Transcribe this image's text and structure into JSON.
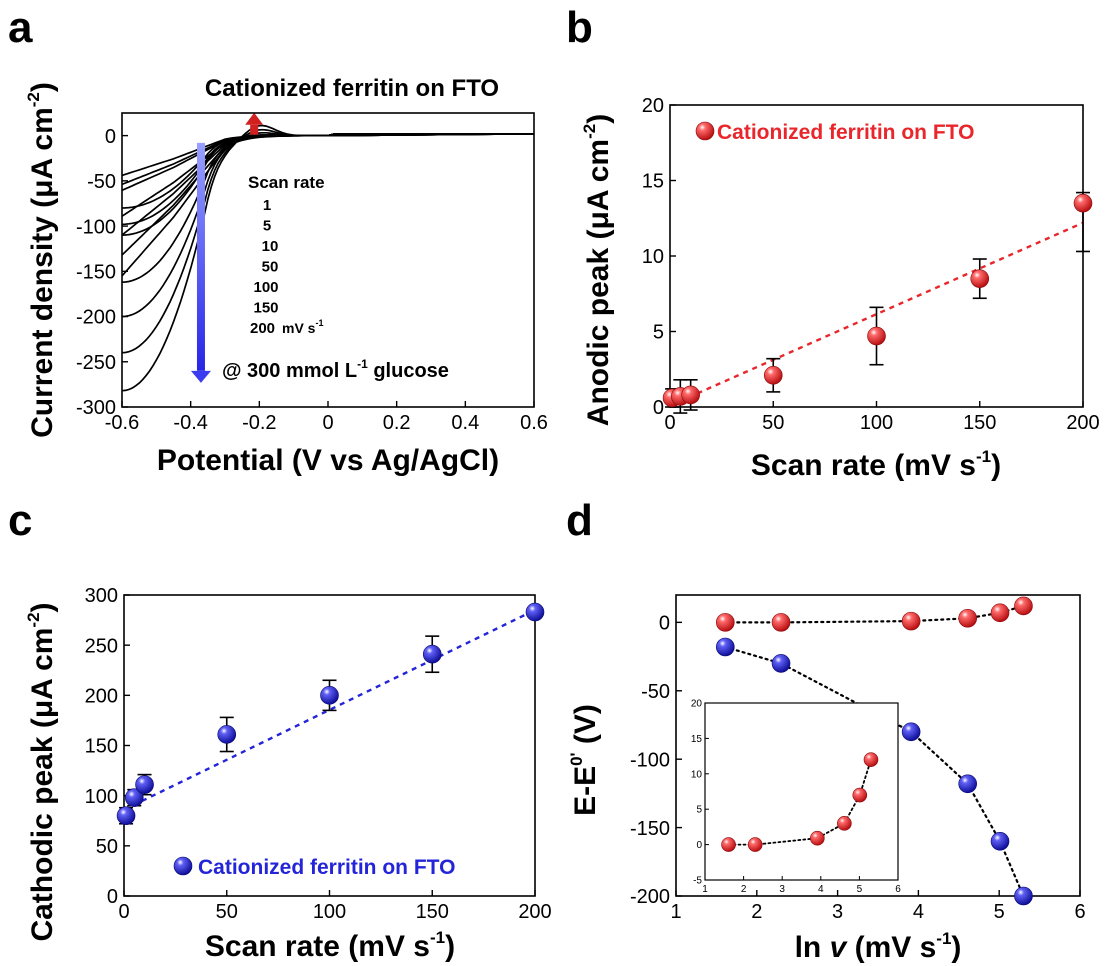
{
  "colors": {
    "red": "#e8262b",
    "blue": "#2424d8",
    "black": "#000000",
    "arrow_blue": "#3b3bf0",
    "arrow_red": "#d0201f"
  },
  "chart_data": [
    {
      "id": "a",
      "panel_label": "a",
      "type": "line",
      "title": "Cationized ferritin on FTO",
      "xlabel": "Potential (V vs Ag/AgCl)",
      "ylabel": "Current density (μA cm",
      "ylabel_sup": "-2",
      "ylabel_end": ")",
      "xlim": [
        -0.6,
        0.6
      ],
      "ylim": [
        -300,
        25
      ],
      "xticks": [
        -0.6,
        -0.4,
        -0.2,
        0,
        0.2,
        0.4,
        0.6
      ],
      "xtick_labels": [
        "-0.6",
        "-0.4",
        "-0.2",
        "0",
        "0.2",
        "0.4",
        "0.6"
      ],
      "yticks": [
        0,
        -50,
        -100,
        -150,
        -200,
        -250,
        -300
      ],
      "ytick_labels": [
        "0",
        "-50",
        "-100",
        "-150",
        "-200",
        "-250",
        "-300"
      ],
      "scan_rate_title": "Scan rate",
      "scan_rates": [
        "1",
        "5",
        "10",
        "50",
        "100",
        "150",
        "200"
      ],
      "scan_rate_unit": "mV s",
      "scan_rate_unit_sup": "-1",
      "annotation_main": "@ 300 mmol L",
      "annotation_sup": "-1",
      "annotation_end": " glucose",
      "series": [
        {
          "scan_rate": 1,
          "cathodic_peak": -80,
          "anodic_peak": 0.7
        },
        {
          "scan_rate": 5,
          "cathodic_peak": -98,
          "anodic_peak": 0.9
        },
        {
          "scan_rate": 10,
          "cathodic_peak": -110,
          "anodic_peak": 1.0
        },
        {
          "scan_rate": 50,
          "cathodic_peak": -162,
          "anodic_peak": 2.1
        },
        {
          "scan_rate": 100,
          "cathodic_peak": -200,
          "anodic_peak": 4.7
        },
        {
          "scan_rate": 150,
          "cathodic_peak": -240,
          "anodic_peak": 8.5
        },
        {
          "scan_rate": 200,
          "cathodic_peak": -282,
          "anodic_peak": 13.5
        }
      ]
    },
    {
      "id": "b",
      "panel_label": "b",
      "type": "scatter",
      "xlabel": "Scan rate (mV s",
      "xlabel_sup": "-1",
      "xlabel_end": ")",
      "ylabel": "Anodic peak (μA cm",
      "ylabel_sup": "-2",
      "ylabel_end": ")",
      "legend": "Cationized ferritin on FTO",
      "xlim": [
        0,
        200
      ],
      "ylim": [
        0,
        20
      ],
      "xticks": [
        0,
        50,
        100,
        150,
        200
      ],
      "xtick_labels": [
        "0",
        "50",
        "100",
        "150",
        "200"
      ],
      "yticks": [
        0,
        5,
        10,
        15,
        20
      ],
      "ytick_labels": [
        "0",
        "5",
        "10",
        "15",
        "20"
      ],
      "points": [
        {
          "x": 1,
          "y": 0.6,
          "err": 0.6
        },
        {
          "x": 5,
          "y": 0.7,
          "err": 1.1
        },
        {
          "x": 10,
          "y": 0.8,
          "err": 1.0
        },
        {
          "x": 50,
          "y": 2.1,
          "err": 1.1
        },
        {
          "x": 100,
          "y": 4.7,
          "err": 1.9
        },
        {
          "x": 150,
          "y": 8.5,
          "err": 1.3
        },
        {
          "x": 200,
          "y": 13.5,
          "err": 0.7
        }
      ],
      "err_low_200": 3.2,
      "fit": {
        "x": [
          0,
          200
        ],
        "y": [
          0.1,
          12.2
        ]
      }
    },
    {
      "id": "c",
      "panel_label": "c",
      "type": "scatter",
      "xlabel": "Scan rate (mV s",
      "xlabel_sup": "-1",
      "xlabel_end": ")",
      "ylabel": "Cathodic peak (μA cm",
      "ylabel_sup": "-2",
      "ylabel_end": ")",
      "legend": "Cationized ferritin on FTO",
      "xlim": [
        0,
        200
      ],
      "ylim": [
        0,
        300
      ],
      "xticks": [
        0,
        50,
        100,
        150,
        200
      ],
      "xtick_labels": [
        "0",
        "50",
        "100",
        "150",
        "200"
      ],
      "yticks": [
        0,
        50,
        100,
        150,
        200,
        250,
        300
      ],
      "ytick_labels": [
        "0",
        "50",
        "100",
        "150",
        "200",
        "250",
        "300"
      ],
      "points": [
        {
          "x": 1,
          "y": 80,
          "err": 8
        },
        {
          "x": 5,
          "y": 98,
          "err": 8
        },
        {
          "x": 10,
          "y": 111,
          "err": 10
        },
        {
          "x": 50,
          "y": 161,
          "err": 17
        },
        {
          "x": 100,
          "y": 200,
          "err": 15
        },
        {
          "x": 150,
          "y": 241,
          "err": 18
        },
        {
          "x": 200,
          "y": 283,
          "err": 5
        }
      ],
      "fit": {
        "x": [
          0,
          200
        ],
        "y": [
          86,
          285
        ]
      }
    },
    {
      "id": "d",
      "panel_label": "d",
      "type": "scatter",
      "xlabel": "ln ",
      "xlabel_italic": "v",
      "xlabel_end": " (mV s",
      "xlabel_sup": "-1",
      "xlabel_close": ")",
      "ylabel": "E-E",
      "ylabel_sup": "0'",
      "ylabel_end": " (V)",
      "xlim": [
        1,
        6
      ],
      "ylim": [
        -200,
        20
      ],
      "xticks": [
        1,
        2,
        3,
        4,
        5,
        6
      ],
      "xtick_labels": [
        "1",
        "2",
        "3",
        "4",
        "5",
        "6"
      ],
      "yticks": [
        0,
        -50,
        -100,
        -150,
        -200
      ],
      "ytick_labels": [
        "0",
        "-50",
        "-100",
        "-150",
        "-200"
      ],
      "series": [
        {
          "color": "red",
          "x": [
            1.61,
            2.3,
            3.91,
            4.61,
            5.01,
            5.3
          ],
          "y": [
            0,
            0,
            0.9,
            3,
            7,
            12
          ]
        },
        {
          "color": "blue",
          "x": [
            1.61,
            2.3,
            3.91,
            4.61,
            5.01,
            5.3
          ],
          "y": [
            -18,
            -30,
            -80,
            -118,
            -160,
            -200
          ]
        }
      ],
      "inset": {
        "xlim": [
          1,
          6
        ],
        "ylim": [
          -5,
          20
        ],
        "xticks": [
          1,
          2,
          3,
          4,
          5,
          6
        ],
        "xtick_labels": [
          "1",
          "2",
          "3",
          "4",
          "5",
          "6"
        ],
        "yticks": [
          -5,
          0,
          5,
          10,
          15,
          20
        ],
        "ytick_labels": [
          "-5",
          "0",
          "5",
          "10",
          "15",
          "20"
        ],
        "x": [
          1.61,
          2.3,
          3.91,
          4.61,
          5.01,
          5.3
        ],
        "y": [
          0,
          0,
          0.9,
          3,
          7,
          12
        ]
      }
    }
  ]
}
